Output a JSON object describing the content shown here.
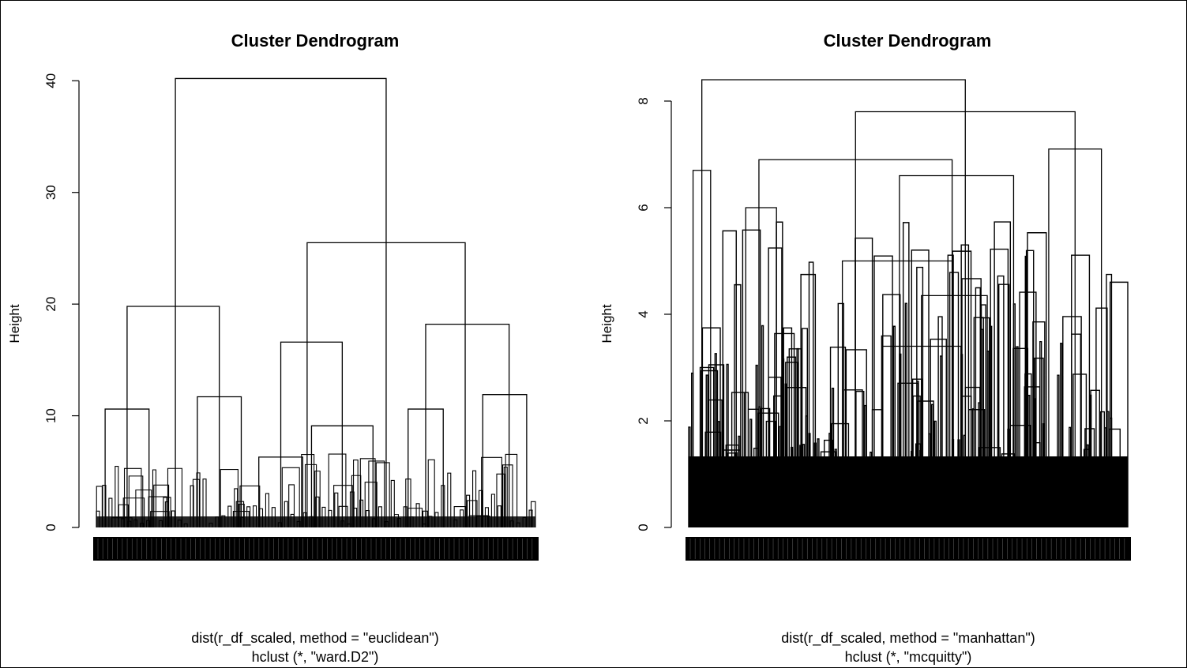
{
  "chart_data": [
    {
      "type": "dendrogram",
      "title": "Cluster Dendrogram",
      "ylabel": "Height",
      "xlabel_line1": "dist(r_df_scaled, method = \"euclidean\")",
      "xlabel_line2": "hclust (*, \"ward.D2\")",
      "yticks": [
        0,
        10,
        20,
        30,
        40
      ],
      "ylim": [
        0,
        42
      ],
      "grid": false,
      "leaf_count": 140,
      "merges": [
        {
          "x1": 0.18,
          "x2": 0.66,
          "h": 40.2
        },
        {
          "x1": 0.07,
          "x2": 0.28,
          "h": 19.8
        },
        {
          "x1": 0.48,
          "x2": 0.84,
          "h": 25.5
        },
        {
          "x1": 0.02,
          "x2": 0.12,
          "h": 10.6
        },
        {
          "x1": 0.23,
          "x2": 0.33,
          "h": 11.7
        },
        {
          "x1": 0.42,
          "x2": 0.56,
          "h": 16.6
        },
        {
          "x1": 0.75,
          "x2": 0.94,
          "h": 18.2
        },
        {
          "x1": 0.37,
          "x2": 0.47,
          "h": 6.3
        },
        {
          "x1": 0.49,
          "x2": 0.63,
          "h": 9.1
        },
        {
          "x1": 0.71,
          "x2": 0.79,
          "h": 10.6
        },
        {
          "x1": 0.88,
          "x2": 0.98,
          "h": 11.9
        }
      ]
    },
    {
      "type": "dendrogram",
      "title": "Cluster Dendrogram",
      "ylabel": "Height",
      "xlabel_line1": "dist(r_df_scaled, method = \"manhattan\")",
      "xlabel_line2": "hclust (*, \"mcquitty\")",
      "yticks": [
        0,
        2,
        4,
        6,
        8
      ],
      "ylim": [
        0,
        8.8
      ],
      "grid": false,
      "leaf_count": 300,
      "merges": [
        {
          "x1": 0.03,
          "x2": 0.63,
          "h": 8.4
        },
        {
          "x1": 0.38,
          "x2": 0.88,
          "h": 7.8
        },
        {
          "x1": 0.16,
          "x2": 0.6,
          "h": 6.9
        },
        {
          "x1": 0.48,
          "x2": 0.74,
          "h": 6.6
        },
        {
          "x1": 0.82,
          "x2": 0.94,
          "h": 7.1
        },
        {
          "x1": 0.13,
          "x2": 0.2,
          "h": 6.0
        },
        {
          "x1": 0.35,
          "x2": 0.6,
          "h": 5.0
        },
        {
          "x1": 0.53,
          "x2": 0.68,
          "h": 4.35
        },
        {
          "x1": 0.44,
          "x2": 0.62,
          "h": 3.4
        },
        {
          "x1": 0.01,
          "x2": 0.05,
          "h": 6.7
        }
      ]
    }
  ]
}
